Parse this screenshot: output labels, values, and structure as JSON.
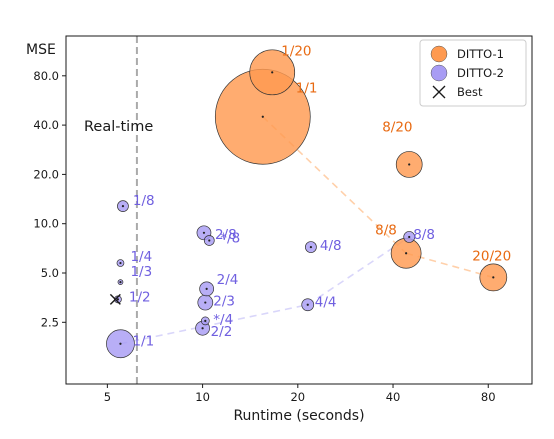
{
  "chart_data": {
    "type": "scatter",
    "scale": "log-log",
    "xlabel": "Runtime (seconds)",
    "ylabel": "MSE",
    "x_ticks": [
      {
        "value": 5,
        "label": "5"
      },
      {
        "value": 10,
        "label": "10"
      },
      {
        "value": 20,
        "label": "20"
      },
      {
        "value": 40,
        "label": "40"
      },
      {
        "value": 80,
        "label": "80"
      }
    ],
    "y_ticks": [
      {
        "value": 2.5,
        "label": "2.5"
      },
      {
        "value": 5,
        "label": "5.0"
      },
      {
        "value": 10,
        "label": "10.0"
      },
      {
        "value": 20,
        "label": "20.0"
      },
      {
        "value": 40,
        "label": "40.0"
      },
      {
        "value": 80,
        "label": "80.0"
      }
    ],
    "xlim": [
      3.7,
      110
    ],
    "ylim": [
      1.05,
      140
    ],
    "grid": false,
    "legend_position": "top-right",
    "reference_line": {
      "x": 6.2,
      "label": "Real-time",
      "color": "#aaaaaa"
    },
    "series": [
      {
        "name": "DITTO-1",
        "color": "#ff9a50",
        "edge": "#333333",
        "label_color": "#e86a12",
        "connect_color": "#ffd0aa",
        "points": [
          {
            "label": "1/1",
            "x": 15.5,
            "y": 45.0,
            "size": 95
          },
          {
            "label": "1/20",
            "x": 16.6,
            "y": 84.0,
            "size": 45
          },
          {
            "label": "8/20",
            "x": 45.0,
            "y": 23.0,
            "size": 26
          },
          {
            "label": "8/8",
            "x": 44.0,
            "y": 6.6,
            "size": 30
          },
          {
            "label": "20/20",
            "x": 83.0,
            "y": 4.7,
            "size": 27
          }
        ],
        "path": [
          "1/1",
          "8/8",
          "20/20"
        ]
      },
      {
        "name": "DITTO-2",
        "color": "#a89cf4",
        "edge": "#333333",
        "label_color": "#7060e0",
        "connect_color": "#d9d6fa",
        "points": [
          {
            "label": "1/1",
            "x": 5.5,
            "y": 1.85,
            "size": 28
          },
          {
            "label": "1/2",
            "x": 5.4,
            "y": 3.45,
            "size": 7
          },
          {
            "label": "1/3",
            "x": 5.5,
            "y": 4.4,
            "size": 5
          },
          {
            "label": "1/4",
            "x": 5.5,
            "y": 5.75,
            "size": 7
          },
          {
            "label": "1/8",
            "x": 5.6,
            "y": 12.8,
            "size": 11
          },
          {
            "label": "2/2",
            "x": 10.0,
            "y": 2.3,
            "size": 14
          },
          {
            "label": "*/4",
            "x": 10.2,
            "y": 2.55,
            "size": 8
          },
          {
            "label": "2/3",
            "x": 10.2,
            "y": 3.3,
            "size": 15
          },
          {
            "label": "2/4",
            "x": 10.3,
            "y": 4.0,
            "size": 14
          },
          {
            "label": "2/8",
            "x": 10.1,
            "y": 8.8,
            "size": 14
          },
          {
            "label": "*/8",
            "x": 10.5,
            "y": 7.9,
            "size": 10
          },
          {
            "label": "4/4",
            "x": 21.5,
            "y": 3.2,
            "size": 12
          },
          {
            "label": "4/8",
            "x": 22.0,
            "y": 7.2,
            "size": 11
          },
          {
            "label": "8/8",
            "x": 45.0,
            "y": 8.3,
            "size": 11
          }
        ],
        "path": [
          "1/1",
          "4/4",
          "8/8"
        ]
      },
      {
        "name": "Best",
        "marker": "x",
        "points": [
          {
            "label": "Best",
            "x": 5.3,
            "y": 3.45
          }
        ]
      }
    ],
    "point_labels": [
      {
        "series": 0,
        "text": "1/20"
      },
      {
        "series": 0,
        "text": "1/1"
      },
      {
        "series": 0,
        "text": "8/20"
      },
      {
        "series": 0,
        "text": "8/8"
      },
      {
        "series": 0,
        "text": "20/20"
      },
      {
        "series": 1,
        "text": "1/8"
      },
      {
        "series": 1,
        "text": "1/4"
      },
      {
        "series": 1,
        "text": "1/3"
      },
      {
        "series": 1,
        "text": "1/2"
      },
      {
        "series": 1,
        "text": "1/1"
      },
      {
        "series": 1,
        "text": "2/8"
      },
      {
        "series": 1,
        "text": "*/8"
      },
      {
        "series": 1,
        "text": "2/4"
      },
      {
        "series": 1,
        "text": "2/3"
      },
      {
        "series": 1,
        "text": "*/4"
      },
      {
        "series": 1,
        "text": "2/2"
      },
      {
        "series": 1,
        "text": "4/8"
      },
      {
        "series": 1,
        "text": "4/4"
      },
      {
        "series": 1,
        "text": "8/8"
      }
    ]
  }
}
